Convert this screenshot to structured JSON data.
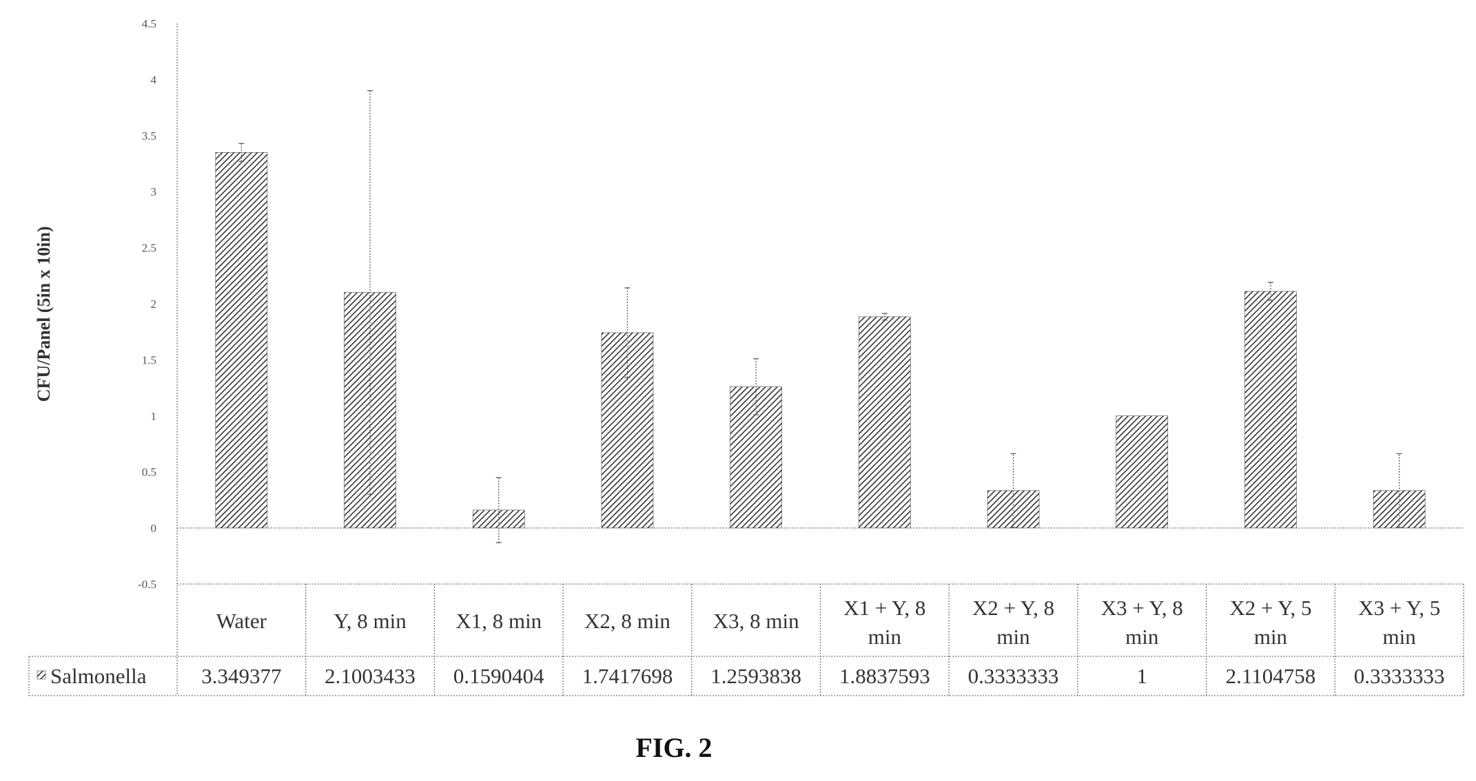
{
  "figure": {
    "caption": "FIG. 2"
  },
  "chart_data": {
    "type": "bar",
    "ylabel": "CFU/Panel (5in x 10in)",
    "ylim": [
      -0.5,
      4.5
    ],
    "yticks": [
      "4.5",
      "4",
      "3.5",
      "3",
      "2.5",
      "2",
      "1.5",
      "1",
      "0.5",
      "0",
      "-0.5"
    ],
    "categories": [
      [
        "Water"
      ],
      [
        "Y, 8 min"
      ],
      [
        "X1, 8 min"
      ],
      [
        "X2, 8 min"
      ],
      [
        "X3, 8 min"
      ],
      [
        "X1 + Y, 8",
        "min"
      ],
      [
        "X2 + Y, 8",
        "min"
      ],
      [
        "X3 + Y, 8",
        "min"
      ],
      [
        "X2 + Y, 5",
        "min"
      ],
      [
        "X3 + Y, 5",
        "min"
      ]
    ],
    "series": [
      {
        "name": "Salmonella",
        "values": [
          3.349377,
          2.1003433,
          0.1590404,
          1.7417698,
          1.2593838,
          1.8837593,
          0.3333333,
          1,
          2.1104758,
          0.3333333
        ],
        "value_labels": [
          "3.349377",
          "2.1003433",
          "0.1590404",
          "1.7417698",
          "1.2593838",
          "1.8837593",
          "0.3333333",
          "1",
          "2.1104758",
          "0.3333333"
        ],
        "error": [
          0.08,
          1.8,
          0.29,
          0.4,
          0.25,
          0.03,
          0.33,
          0,
          0.08,
          0.33
        ]
      }
    ],
    "data_table": true,
    "grid": false
  }
}
